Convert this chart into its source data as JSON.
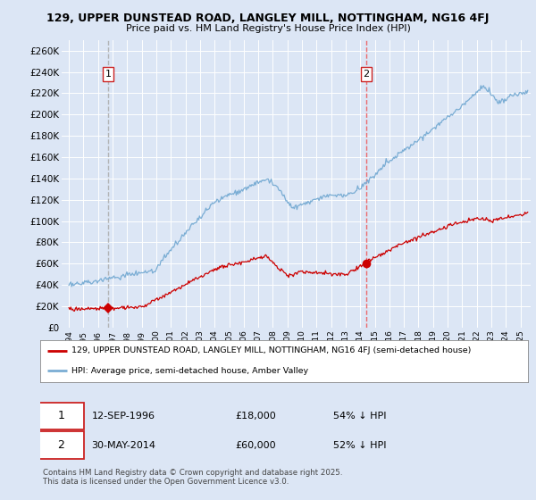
{
  "title1": "129, UPPER DUNSTEAD ROAD, LANGLEY MILL, NOTTINGHAM, NG16 4FJ",
  "title2": "Price paid vs. HM Land Registry's House Price Index (HPI)",
  "legend_line1": "129, UPPER DUNSTEAD ROAD, LANGLEY MILL, NOTTINGHAM, NG16 4FJ (semi-detached house)",
  "legend_line2": "HPI: Average price, semi-detached house, Amber Valley",
  "footer": "Contains HM Land Registry data © Crown copyright and database right 2025.\nThis data is licensed under the Open Government Licence v3.0.",
  "transaction1": {
    "label": "1",
    "date_x": 1996.7,
    "price": 18000,
    "text": "12-SEP-1996",
    "amount": "£18,000",
    "pct": "54% ↓ HPI"
  },
  "transaction2": {
    "label": "2",
    "date_x": 2014.41,
    "price": 60000,
    "text": "30-MAY-2014",
    "amount": "£60,000",
    "pct": "52% ↓ HPI"
  },
  "ylim": [
    0,
    270000
  ],
  "xlim": [
    1993.5,
    2025.7
  ],
  "background_color": "#dce6f5",
  "plot_bg": "#dce6f5",
  "grid_color": "#ffffff",
  "red_line_color": "#cc0000",
  "blue_line_color": "#7aadd4",
  "dashed_color_1": "#aaaaaa",
  "dashed_color_2": "#ee5555"
}
